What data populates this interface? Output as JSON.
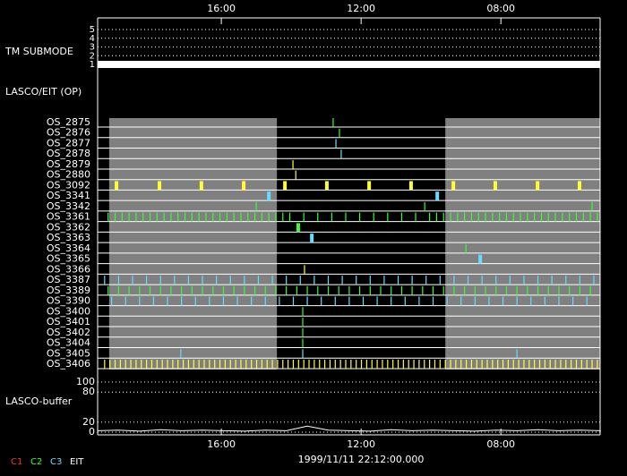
{
  "chart_data": {
    "type": "timeline",
    "xlim": [
      0,
      14.38
    ],
    "xticks": [
      {
        "value": 3.54,
        "label": "16:00"
      },
      {
        "value": 7.54,
        "label": "12:00"
      },
      {
        "value": 11.54,
        "label": "08:00"
      }
    ],
    "timestamp": "1999/11/11 22:12:00.000",
    "tm_submode": {
      "label": "TM SUBMODE",
      "ylim": [
        1,
        5
      ],
      "yticks": [
        1,
        2,
        3,
        4,
        5
      ],
      "values": [
        1
      ],
      "color": "#ffffff"
    },
    "section_label": "LASCO/EIT (OP)",
    "shaded": [
      [
        0.33,
        5.13
      ],
      [
        9.95,
        14.38
      ]
    ],
    "rows": [
      {
        "name": "OS_2875",
        "color": "#33ff33",
        "thick": false,
        "times": [
          6.74
        ]
      },
      {
        "name": "OS_2876",
        "color": "#33ff33",
        "thick": false,
        "times": [
          6.92
        ]
      },
      {
        "name": "OS_2877",
        "color": "#66ddff",
        "thick": false,
        "times": [
          6.82
        ]
      },
      {
        "name": "OS_2878",
        "color": "#66ddff",
        "thick": false,
        "times": [
          6.97
        ]
      },
      {
        "name": "OS_2879",
        "color": "#ffff33",
        "thick": false,
        "times": [
          5.59
        ]
      },
      {
        "name": "OS_2880",
        "color": "#ffff33",
        "thick": false,
        "times": [
          5.67
        ]
      },
      {
        "name": "OS_3092",
        "color": "#ffff33",
        "thick": true,
        "times": [
          0.54,
          1.77,
          2.97,
          4.18,
          5.36,
          6.56,
          7.77,
          8.97,
          10.18,
          11.38,
          12.59,
          13.79
        ]
      },
      {
        "name": "OS_3341",
        "color": "#66ddff",
        "thick": true,
        "times": [
          4.9,
          9.72
        ]
      },
      {
        "name": "OS_3342",
        "color": "#33ff33",
        "thick": false,
        "times": [
          4.54,
          9.36,
          14.15
        ]
      },
      {
        "name": "OS_3361",
        "color": "#33ff33",
        "thick": false,
        "times": [
          0.3,
          0.5,
          0.7,
          0.9,
          1.1,
          1.3,
          1.5,
          1.7,
          1.9,
          2.1,
          2.3,
          2.5,
          2.7,
          2.9,
          3.1,
          3.3,
          3.5,
          3.7,
          3.9,
          4.1,
          4.3,
          4.5,
          4.7,
          4.9,
          5.1,
          5.3,
          5.5,
          5.9,
          6.3,
          6.7,
          7.1,
          7.5,
          7.9,
          8.3,
          8.7,
          9.1,
          9.5,
          9.7,
          9.9,
          10.1,
          10.3,
          10.5,
          10.7,
          10.9,
          11.1,
          11.3,
          11.5,
          11.7,
          11.9,
          12.1,
          12.3,
          12.5,
          12.7,
          12.9,
          13.1,
          13.3,
          13.5,
          13.7,
          13.9,
          14.1,
          14.3
        ]
      },
      {
        "name": "OS_3362",
        "color": "#33ff33",
        "thick": true,
        "times": [
          5.74
        ]
      },
      {
        "name": "OS_3363",
        "color": "#66ddff",
        "thick": true,
        "times": [
          6.13
        ]
      },
      {
        "name": "OS_3364",
        "color": "#33ff33",
        "thick": false,
        "times": [
          10.54
        ]
      },
      {
        "name": "OS_3365",
        "color": "#66ddff",
        "thick": true,
        "times": [
          10.95
        ]
      },
      {
        "name": "OS_3366",
        "color": "#ffff33",
        "thick": false,
        "times": [
          5.92
        ]
      },
      {
        "name": "OS_3387",
        "color": "#66ddff",
        "thick": false,
        "times": [
          0.2,
          0.6,
          1.0,
          1.4,
          1.8,
          2.2,
          2.6,
          3.0,
          3.4,
          3.8,
          4.2,
          4.6,
          5.0,
          5.4,
          5.8,
          6.2,
          6.6,
          7.0,
          7.4,
          7.8,
          8.2,
          8.6,
          9.0,
          9.4,
          9.8,
          10.2,
          10.6,
          11.0,
          11.4,
          11.8,
          12.2,
          12.6,
          13.0,
          13.4,
          13.8,
          14.2
        ]
      },
      {
        "name": "OS_3389",
        "color": "#33ff33",
        "thick": false,
        "times": [
          0.3,
          0.6,
          0.9,
          1.2,
          1.5,
          1.8,
          2.1,
          2.4,
          2.7,
          3,
          3.3,
          3.6,
          3.9,
          4.2,
          4.5,
          4.8,
          5.1,
          5.4,
          5.7,
          6,
          6.3,
          6.6,
          6.9,
          7.2,
          7.5,
          7.8,
          8.1,
          8.4,
          8.7,
          9,
          9.3,
          9.6,
          9.9,
          10.2,
          10.5,
          10.8,
          11.1,
          11.4,
          11.7,
          12,
          12.3,
          12.6,
          12.9,
          13.2,
          13.5,
          13.8,
          14.1
        ]
      },
      {
        "name": "OS_3390",
        "color": "#66ddff",
        "thick": false,
        "times": [
          0.4,
          0.8,
          1.2,
          1.6,
          2,
          2.4,
          2.8,
          3.2,
          3.6,
          4,
          4.4,
          4.8,
          5.2,
          5.6,
          6,
          6.4,
          6.8,
          7.2,
          7.6,
          8,
          8.4,
          8.8,
          9.2,
          9.6,
          10,
          10.4,
          10.8,
          11.2,
          11.6,
          12,
          12.4,
          12.8,
          13.2,
          13.6,
          14
        ]
      },
      {
        "name": "OS_3400",
        "color": "#33ff33",
        "thick": false,
        "times": [
          5.87
        ]
      },
      {
        "name": "OS_3401",
        "color": "#33ff33",
        "thick": false,
        "times": [
          5.87
        ]
      },
      {
        "name": "OS_3402",
        "color": "#33ff33",
        "thick": false,
        "times": [
          5.87
        ]
      },
      {
        "name": "OS_3404",
        "color": "#33ff33",
        "thick": false,
        "times": [
          5.87
        ]
      },
      {
        "name": "OS_3405",
        "color": "#66ddff",
        "thick": false,
        "times": [
          2.38,
          5.87,
          12.0
        ]
      },
      {
        "name": "OS_3406",
        "color": "#ffff33",
        "thick": false,
        "times": [
          0.2,
          0.35,
          0.5,
          0.65,
          0.8,
          0.95,
          1.1,
          1.25,
          1.4,
          1.55,
          1.7,
          1.85,
          2,
          2.15,
          2.3,
          2.45,
          2.6,
          2.75,
          2.9,
          3.05,
          3.2,
          3.35,
          3.5,
          3.65,
          3.8,
          3.95,
          4.1,
          4.25,
          4.4,
          4.55,
          4.7,
          4.85,
          5,
          5.15,
          5.3,
          5.45,
          5.6,
          5.75,
          5.9,
          6.05,
          6.2,
          6.35,
          6.5,
          6.65,
          6.8,
          6.95,
          7.1,
          7.25,
          7.4,
          7.55,
          7.7,
          7.85,
          8,
          8.15,
          8.3,
          8.45,
          8.6,
          8.75,
          8.9,
          9.05,
          9.2,
          9.35,
          9.5,
          9.65,
          9.8,
          9.95,
          10.1,
          10.25,
          10.4,
          10.55,
          10.7,
          10.85,
          11,
          11.15,
          11.3,
          11.45,
          11.6,
          11.75,
          11.9,
          12.05,
          12.2,
          12.35,
          12.5,
          12.65,
          12.8,
          12.95,
          13.1,
          13.25,
          13.4,
          13.55,
          13.7,
          13.85,
          14,
          14.15,
          14.3
        ]
      }
    ],
    "buffer": {
      "label": "LASCO-buffer",
      "ylim": [
        0,
        100
      ],
      "yticks": [
        0,
        20,
        80,
        100
      ],
      "color": "#ffffff",
      "x": [
        0,
        0.6,
        1.2,
        1.8,
        2.4,
        3,
        3.6,
        4.2,
        4.8,
        5.4,
        6,
        6.6,
        7.2,
        7.8,
        8.4,
        9,
        9.6,
        10.2,
        10.8,
        11.4,
        12,
        12.6,
        13.2,
        13.8,
        14.4
      ],
      "values": [
        3,
        4,
        2,
        5,
        3,
        4,
        3,
        2,
        4,
        3,
        12,
        4,
        3,
        2,
        5,
        3,
        4,
        3,
        2,
        4,
        3,
        5,
        3,
        4,
        3
      ]
    },
    "legend": [
      {
        "label": "C1",
        "color": "#ff3333"
      },
      {
        "label": "C2",
        "color": "#33ff33"
      },
      {
        "label": "C3",
        "color": "#66ddff"
      },
      {
        "label": "EIT",
        "color": "#ffffff"
      }
    ]
  }
}
